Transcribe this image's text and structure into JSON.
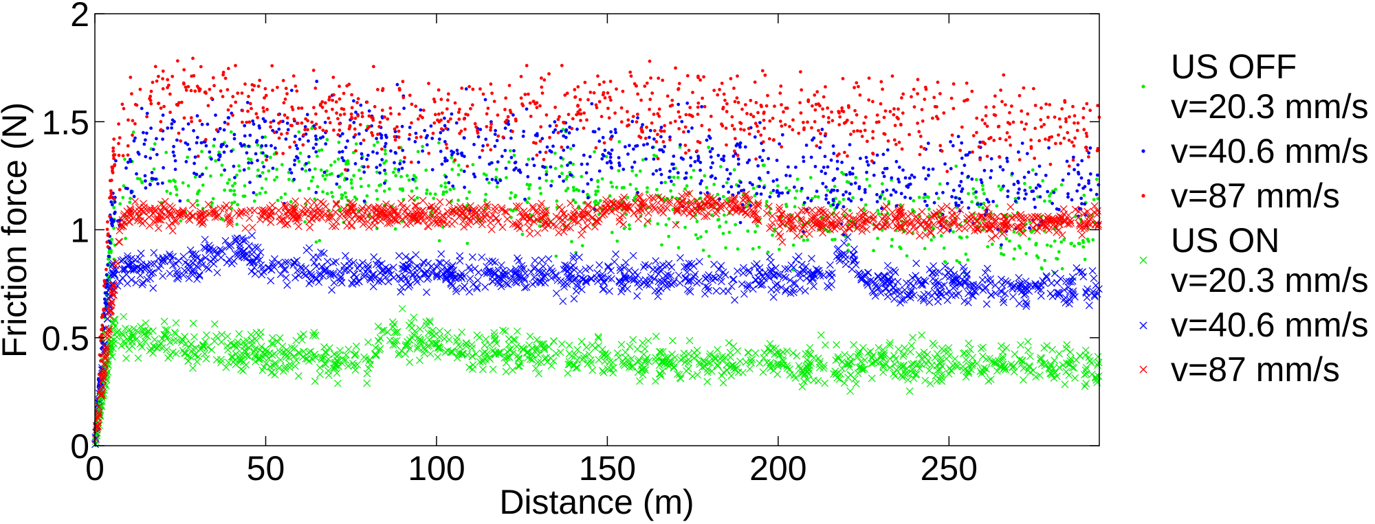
{
  "chart_data": {
    "type": "scatter",
    "title": "",
    "xlabel": "Distance (m)",
    "ylabel": "Friction force (N)",
    "xlim": [
      0,
      294
    ],
    "ylim": [
      0,
      2
    ],
    "xticks": [
      0,
      50,
      100,
      150,
      200,
      250
    ],
    "yticks": [
      0,
      0.5,
      1,
      1.5,
      2
    ],
    "ytick_labels": [
      "0",
      "0.5",
      "1",
      "1.5",
      "2"
    ],
    "grid": false,
    "legend_position": "right-outside",
    "legend_groups": [
      "US OFF",
      "US ON"
    ],
    "series": [
      {
        "name": "v=20.3 mm/s",
        "group": "US OFF",
        "marker": "dot",
        "color": "#00ee00",
        "spread": 0.11,
        "trend": [
          [
            0,
            0
          ],
          [
            5,
            1.0
          ],
          [
            10,
            1.2
          ],
          [
            50,
            1.25
          ],
          [
            100,
            1.2
          ],
          [
            150,
            1.15
          ],
          [
            200,
            1.1
          ],
          [
            250,
            1.05
          ],
          [
            294,
            1.0
          ]
        ]
      },
      {
        "name": "v=40.6 mm/s",
        "group": "US OFF",
        "marker": "dot",
        "color": "#0000ff",
        "spread": 0.1,
        "trend": [
          [
            0,
            0
          ],
          [
            5,
            1.1
          ],
          [
            15,
            1.35
          ],
          [
            50,
            1.42
          ],
          [
            100,
            1.38
          ],
          [
            150,
            1.35
          ],
          [
            200,
            1.25
          ],
          [
            250,
            1.22
          ],
          [
            294,
            1.2
          ]
        ]
      },
      {
        "name": "v=87 mm/s",
        "group": "US OFF",
        "marker": "dot",
        "color": "#ff0000",
        "spread": 0.09,
        "trend": [
          [
            0,
            0
          ],
          [
            5,
            1.3
          ],
          [
            12,
            1.6
          ],
          [
            30,
            1.6
          ],
          [
            60,
            1.55
          ],
          [
            100,
            1.52
          ],
          [
            150,
            1.57
          ],
          [
            200,
            1.54
          ],
          [
            250,
            1.5
          ],
          [
            294,
            1.46
          ]
        ]
      },
      {
        "name": "v=20.3 mm/s",
        "group": "US ON",
        "marker": "x",
        "color": "#00ee00",
        "spread": 0.045,
        "trend": [
          [
            0,
            0
          ],
          [
            5,
            0.52
          ],
          [
            30,
            0.45
          ],
          [
            80,
            0.38
          ],
          [
            84,
            0.52
          ],
          [
            110,
            0.44
          ],
          [
            150,
            0.4
          ],
          [
            200,
            0.38
          ],
          [
            250,
            0.38
          ],
          [
            294,
            0.37
          ]
        ]
      },
      {
        "name": "v=40.6 mm/s",
        "group": "US ON",
        "marker": "x",
        "color": "#0000ff",
        "spread": 0.04,
        "trend": [
          [
            0,
            0
          ],
          [
            5,
            0.8
          ],
          [
            30,
            0.84
          ],
          [
            40,
            0.93
          ],
          [
            50,
            0.82
          ],
          [
            100,
            0.8
          ],
          [
            150,
            0.78
          ],
          [
            214,
            0.78
          ],
          [
            220,
            0.9
          ],
          [
            228,
            0.75
          ],
          [
            294,
            0.73
          ]
        ]
      },
      {
        "name": "v=87 mm/s",
        "group": "US ON",
        "marker": "x",
        "color": "#ff0000",
        "spread": 0.03,
        "trend": [
          [
            0,
            0
          ],
          [
            8,
            1.07
          ],
          [
            100,
            1.07
          ],
          [
            145,
            1.05
          ],
          [
            150,
            1.1
          ],
          [
            190,
            1.12
          ],
          [
            199,
            1.04
          ],
          [
            294,
            1.04
          ]
        ]
      }
    ]
  }
}
